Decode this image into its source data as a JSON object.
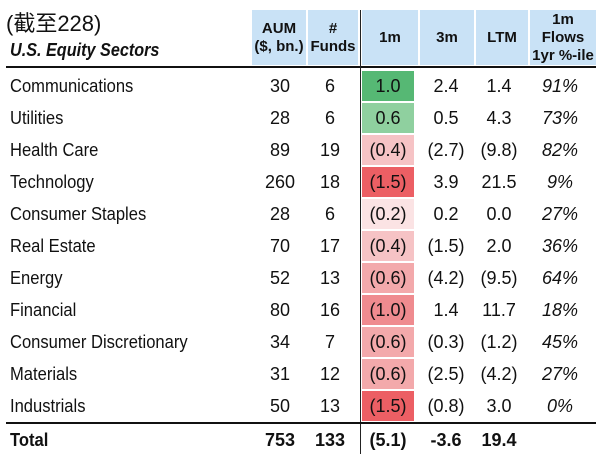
{
  "header": {
    "title": "(截至228)",
    "subtitle": "U.S. Equity Sectors",
    "col_aum": [
      "AUM",
      "($, bn.)"
    ],
    "col_funds": [
      "#",
      "Funds"
    ],
    "col_1m": "1m",
    "col_3m": "3m",
    "col_ltm": "LTM",
    "col_flows": [
      "1m Flows",
      "1yr %-ile"
    ]
  },
  "rows": [
    {
      "name": "Communications",
      "aum": "30",
      "funds": "6",
      "m1": "1.0",
      "m3": "2.4",
      "ltm": "1.4",
      "flows": "91%",
      "heat": "#56b874"
    },
    {
      "name": "Utilities",
      "aum": "28",
      "funds": "6",
      "m1": "0.6",
      "m3": "0.5",
      "ltm": "4.3",
      "flows": "73%",
      "heat": "#8fd09f"
    },
    {
      "name": "Health Care",
      "aum": "89",
      "funds": "19",
      "m1": "(0.4)",
      "m3": "(2.7)",
      "ltm": "(9.8)",
      "flows": "82%",
      "heat": "#f6c3c5"
    },
    {
      "name": "Technology",
      "aum": "260",
      "funds": "18",
      "m1": "(1.5)",
      "m3": "3.9",
      "ltm": "21.5",
      "flows": "9%",
      "heat": "#ec5f64"
    },
    {
      "name": "Consumer Staples",
      "aum": "28",
      "funds": "6",
      "m1": "(0.2)",
      "m3": "0.2",
      "ltm": "0.0",
      "flows": "27%",
      "heat": "#fbe3e4"
    },
    {
      "name": "Real Estate",
      "aum": "70",
      "funds": "17",
      "m1": "(0.4)",
      "m3": "(1.5)",
      "ltm": "2.0",
      "flows": "36%",
      "heat": "#f6c3c5"
    },
    {
      "name": "Energy",
      "aum": "52",
      "funds": "13",
      "m1": "(0.6)",
      "m3": "(4.2)",
      "ltm": "(9.5)",
      "flows": "64%",
      "heat": "#f3a9ab"
    },
    {
      "name": "Financial",
      "aum": "80",
      "funds": "16",
      "m1": "(1.0)",
      "m3": "1.4",
      "ltm": "11.7",
      "flows": "18%",
      "heat": "#ef8b8f"
    },
    {
      "name": "Consumer Discretionary",
      "aum": "34",
      "funds": "7",
      "m1": "(0.6)",
      "m3": "(0.3)",
      "ltm": "(1.2)",
      "flows": "45%",
      "heat": "#f3a9ab"
    },
    {
      "name": "Materials",
      "aum": "31",
      "funds": "12",
      "m1": "(0.6)",
      "m3": "(2.5)",
      "ltm": "(4.2)",
      "flows": "27%",
      "heat": "#f3a9ab"
    },
    {
      "name": "Industrials",
      "aum": "50",
      "funds": "13",
      "m1": "(1.5)",
      "m3": "(0.8)",
      "ltm": "3.0",
      "flows": "0%",
      "heat": "#ec5f64"
    }
  ],
  "total": {
    "name": "Total",
    "aum": "753",
    "funds": "133",
    "m1": "(5.1)",
    "m3": "-3.6",
    "ltm": "19.4",
    "flows": ""
  }
}
